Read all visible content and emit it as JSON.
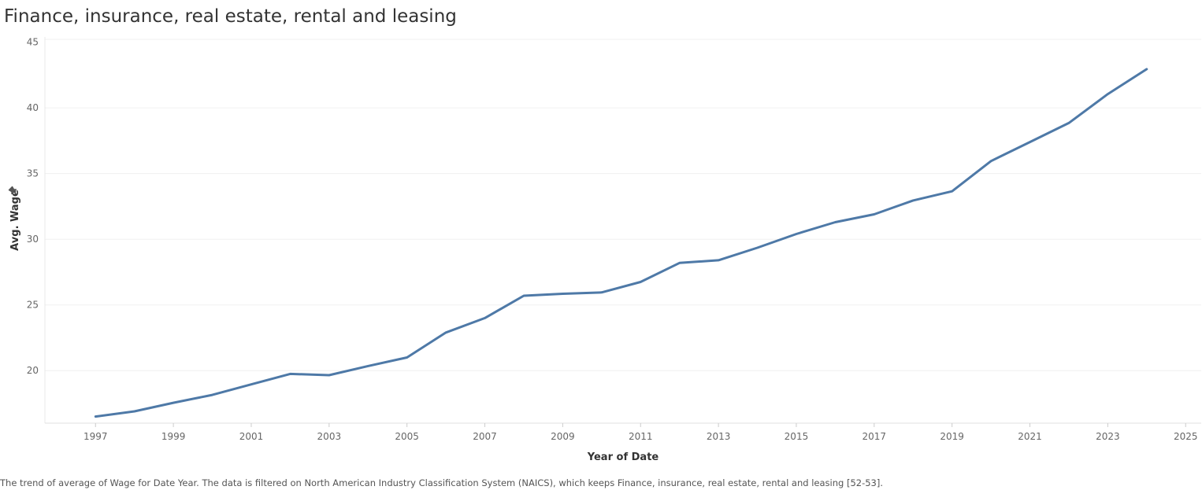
{
  "title": "Finance, insurance, real estate, rental and leasing",
  "caption": "The trend of average of Wage for Date Year. The data is filtered on North American Industry Classification System (NAICS), which keeps Finance, insurance, real estate, rental and leasing [52-53].",
  "pin_icon": "pin-icon",
  "chart_data": {
    "type": "line",
    "xlabel": "Year of Date",
    "ylabel": "Avg. Wage",
    "xlim": [
      1995.7,
      2025.4
    ],
    "ylim": [
      16,
      45.4
    ],
    "x_ticks": [
      1997,
      1999,
      2001,
      2003,
      2005,
      2007,
      2009,
      2011,
      2013,
      2015,
      2017,
      2019,
      2021,
      2023,
      2025
    ],
    "y_ticks": [
      20,
      25,
      30,
      35,
      40,
      45
    ],
    "grid": true,
    "line_color": "#4e79a7",
    "series": [
      {
        "x": [
          1997,
          1998,
          1999,
          2000,
          2001,
          2002,
          2003,
          2004,
          2005,
          2006,
          2007,
          2008,
          2009,
          2010,
          2011,
          2012,
          2013,
          2014,
          2015,
          2016,
          2017,
          2018,
          2019,
          2020,
          2021,
          2022,
          2023,
          2024
        ],
        "y": [
          16.5,
          16.9,
          17.55,
          18.15,
          18.95,
          19.75,
          19.65,
          20.35,
          21.0,
          22.9,
          24.0,
          25.7,
          25.85,
          25.95,
          26.75,
          28.2,
          28.4,
          29.35,
          30.4,
          31.3,
          31.9,
          32.95,
          33.65,
          35.95,
          37.4,
          38.85,
          41.05,
          42.95
        ]
      }
    ]
  }
}
